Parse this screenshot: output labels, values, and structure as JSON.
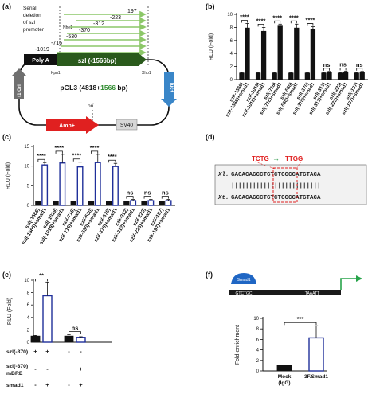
{
  "panel_labels": {
    "a": "(a)",
    "b": "(b)",
    "c": "(c)",
    "d": "(d)",
    "e": "(e)",
    "f": "(f)"
  },
  "plasmid": {
    "serial_label": [
      "Serial",
      "deletion",
      "of szl",
      "promoter"
    ],
    "nhe1": "Nhe1",
    "deletion_labels": [
      "197",
      "-223",
      "-312",
      "-370",
      "-530",
      "-716",
      "-1019"
    ],
    "polya": "Poly A",
    "szl_box": "szl (-1566bp)",
    "kpn1": "Kpn1",
    "xho1": "Xho1",
    "name_prefix": "pGL3 (4818+",
    "name_insert": "1566",
    "name_suffix": " bp)",
    "ori": "ori",
    "f1ori": "f1 Ori",
    "amp": "Amp+",
    "sv40": "SV40",
    "gene_right": "luc+",
    "colors": {
      "polya": "#111111",
      "szl": "#2a5a1c",
      "amp": "#e02020",
      "f1ori": "#6f6f6f",
      "right": "#3a86c8",
      "arrows": "#8cc768",
      "insert_text": "#2e8b2e"
    }
  },
  "alignment": {
    "mut_from": "TCTG",
    "mut_to": "TTGG",
    "arrow": "→",
    "row1_label": "Xl.",
    "row1_seq": "GAGACAGCCTGTCTGCCCATGTACA",
    "bars": "|||||||||||||||||||||||||",
    "row2_label": "Xt.",
    "row2_seq": "GAGACAGCCTGTCTGCCCATGTACA"
  },
  "promoter_schematic": {
    "smad_label": "Smad1",
    "site1": "GTCTGC",
    "site2": "TAAATT"
  },
  "chart_data": [
    {
      "id": "b",
      "type": "bar",
      "ylabel": "RLU (Fold)",
      "ylim": [
        0,
        10
      ],
      "yticks": [
        0,
        2,
        4,
        6,
        8,
        10
      ],
      "categories": [
        "szl(-1566)",
        "szl(-1566)+smad1",
        "szl(-1019)",
        "szl(-1019)+smad1",
        "szl(-716)",
        "szl(-716)+smad1",
        "szl(-530)",
        "szl(-530)+smad1",
        "szl(-370)",
        "szl(-370)+smad1",
        "szl(-312)",
        "szl(-312)+smad1",
        "szl(-223)",
        "szl(-223)+smad1",
        "szl(-197)",
        "szl(-197)+smad1"
      ],
      "values": [
        1,
        7.9,
        1,
        7.4,
        1,
        8.2,
        1,
        7.9,
        1,
        7.7,
        1,
        1.1,
        1,
        1.1,
        1,
        1.1
      ],
      "errors": [
        0.1,
        0.7,
        0.1,
        0.6,
        0.1,
        0.3,
        0.1,
        0.6,
        0.1,
        0.4,
        0.1,
        0.15,
        0.1,
        0.2,
        0.1,
        0.15
      ],
      "colors": [
        "#111111",
        "#111111"
      ],
      "significance": [
        "****",
        "****",
        "****",
        "****",
        "****",
        "ns",
        "ns",
        "ns"
      ]
    },
    {
      "id": "c",
      "type": "bar",
      "ylabel": "RLU (Fold)",
      "ylim": [
        0,
        15
      ],
      "yticks": [
        0,
        5,
        10,
        15
      ],
      "categories": [
        "szl(-1566)",
        "szl(-1566)+smad1",
        "szl(-1019)",
        "szl(-1019)+smad1",
        "szl(-716)",
        "szl(-716)+smad1",
        "szl(-530)",
        "szl(-530)+smad1",
        "szl(-370)",
        "szl(-370)+smad1",
        "szl(-312)",
        "szl(-312)+smad1",
        "szl(-223)",
        "szl(-223)+smad1",
        "szl(-197)",
        "szl(-197)+smad1"
      ],
      "values": [
        1,
        10.3,
        1,
        10.8,
        1,
        9.8,
        1,
        10.9,
        1,
        9.9,
        1,
        1.2,
        1,
        1.2,
        1,
        1.2
      ],
      "errors": [
        0.1,
        0.6,
        0.1,
        2.2,
        0.1,
        1.2,
        0.1,
        2.1,
        0.1,
        0.8,
        0.1,
        0.3,
        0.1,
        0.3,
        0.1,
        0.3
      ],
      "colors": [
        "#111111",
        "#1f2f9a"
      ],
      "significance": [
        "****",
        "****",
        "****",
        "****",
        "****",
        "ns",
        "ns",
        "ns"
      ]
    },
    {
      "id": "e",
      "type": "bar",
      "ylabel": "RLU (Fold)",
      "ylim": [
        0,
        10
      ],
      "yticks": [
        0,
        2,
        4,
        6,
        8,
        10
      ],
      "values": [
        1,
        7.5,
        1,
        0.8
      ],
      "errors": [
        0.1,
        2.2,
        0.2,
        0.1
      ],
      "colors": [
        "#111111",
        "#1f2f9a"
      ],
      "significance": [
        "**",
        "ns"
      ],
      "condition_rows": [
        {
          "label": "szl(-370)",
          "marks": [
            "+",
            "+",
            "-",
            "-"
          ]
        },
        {
          "label": "szl(-370) mBRE",
          "marks": [
            "-",
            "-",
            "+",
            "+"
          ]
        },
        {
          "label": "smad1",
          "marks": [
            "-",
            "+",
            "-",
            "+"
          ]
        }
      ]
    },
    {
      "id": "f",
      "type": "bar",
      "ylabel": "Fold enrichment",
      "ylim": [
        0,
        10
      ],
      "yticks": [
        0,
        2,
        4,
        6,
        8,
        10
      ],
      "categories": [
        "Mock (IgG)",
        "3F.Smad1"
      ],
      "values": [
        1,
        6.3
      ],
      "errors": [
        0.1,
        2.3
      ],
      "colors": [
        "#111111",
        "#1f2f9a"
      ],
      "significance": [
        "***"
      ]
    }
  ]
}
